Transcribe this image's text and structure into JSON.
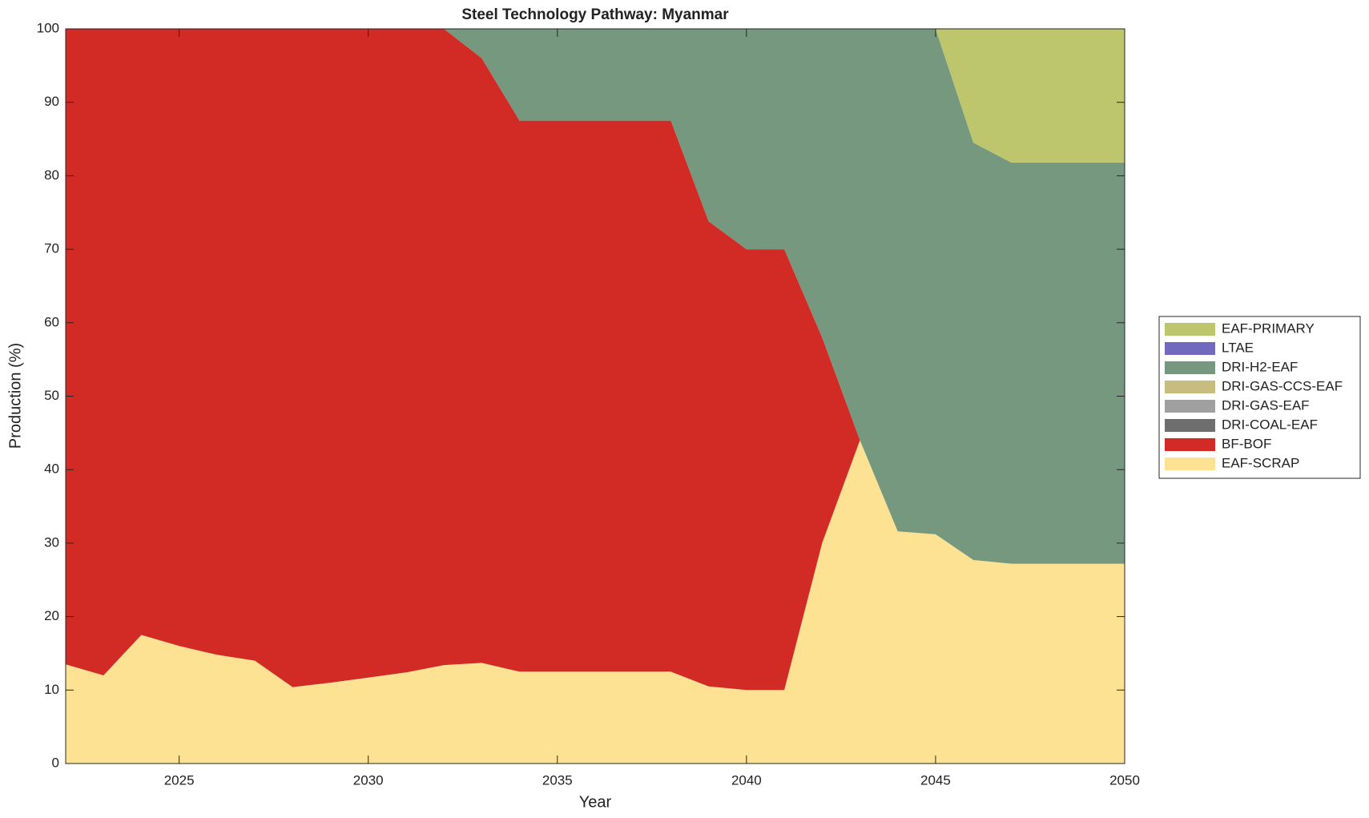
{
  "chart_data": {
    "type": "area",
    "stacked": true,
    "title": "Steel Technology Pathway: Myanmar",
    "xlabel": "Year",
    "ylabel": "Production (%)",
    "x": [
      2022,
      2023,
      2024,
      2025,
      2026,
      2027,
      2028,
      2029,
      2030,
      2031,
      2032,
      2033,
      2034,
      2035,
      2036,
      2037,
      2038,
      2039,
      2040,
      2041,
      2042,
      2043,
      2044,
      2045,
      2046,
      2047,
      2048,
      2049,
      2050
    ],
    "xlim": [
      2022,
      2050
    ],
    "xticks": [
      2025,
      2030,
      2035,
      2040,
      2045,
      2050
    ],
    "ylim": [
      0,
      100
    ],
    "yticks": [
      0,
      10,
      20,
      30,
      40,
      50,
      60,
      70,
      80,
      90,
      100
    ],
    "grid": false,
    "legend": "east-outside",
    "series": [
      {
        "name": "EAF-SCRAP",
        "color": "#fde293",
        "values": [
          13.5,
          12,
          17.5,
          16,
          14.8,
          14,
          10.4,
          11,
          11.7,
          12.4,
          13.4,
          13.7,
          12.5,
          12.5,
          12.5,
          12.5,
          12.5,
          10.5,
          10,
          10,
          30,
          44,
          31.6,
          31.2,
          27.7,
          27.2,
          27.2,
          27.2,
          27.2
        ]
      },
      {
        "name": "BF-BOF",
        "color": "#d22a24",
        "values": [
          86.5,
          88,
          82.5,
          84,
          85.2,
          86,
          89.6,
          89,
          88.3,
          87.6,
          86.6,
          82.3,
          75,
          75,
          75,
          75,
          75,
          63.3,
          60,
          60,
          28,
          0,
          0,
          0,
          0,
          0,
          0,
          0,
          0
        ]
      },
      {
        "name": "DRI-COAL-EAF",
        "color": "#6e6e6e",
        "values": [
          0,
          0,
          0,
          0,
          0,
          0,
          0,
          0,
          0,
          0,
          0,
          0,
          0,
          0,
          0,
          0,
          0,
          0,
          0,
          0,
          0,
          0,
          0,
          0,
          0,
          0,
          0,
          0,
          0
        ]
      },
      {
        "name": "DRI-GAS-EAF",
        "color": "#a0a0a0",
        "values": [
          0,
          0,
          0,
          0,
          0,
          0,
          0,
          0,
          0,
          0,
          0,
          0,
          0,
          0,
          0,
          0,
          0,
          0,
          0,
          0,
          0,
          0,
          0,
          0,
          0,
          0,
          0,
          0,
          0
        ]
      },
      {
        "name": "DRI-GAS-CCS-EAF",
        "color": "#c6bd7e",
        "values": [
          0,
          0,
          0,
          0,
          0,
          0,
          0,
          0,
          0,
          0,
          0,
          0,
          0,
          0,
          0,
          0,
          0,
          0,
          0,
          0,
          0,
          0,
          0,
          0,
          0,
          0,
          0,
          0,
          0
        ]
      },
      {
        "name": "DRI-H2-EAF",
        "color": "#76987e",
        "values": [
          0,
          0,
          0,
          0,
          0,
          0,
          0,
          0,
          0,
          0,
          0,
          4,
          12.5,
          12.5,
          12.5,
          12.5,
          12.5,
          26.2,
          30,
          30,
          42,
          56,
          68.4,
          68.8,
          56.8,
          54.6,
          54.6,
          54.6,
          54.6
        ]
      },
      {
        "name": "LTAE",
        "color": "#7268be",
        "values": [
          0,
          0,
          0,
          0,
          0,
          0,
          0,
          0,
          0,
          0,
          0,
          0,
          0,
          0,
          0,
          0,
          0,
          0,
          0,
          0,
          0,
          0,
          0,
          0,
          0,
          0,
          0,
          0,
          0
        ]
      },
      {
        "name": "EAF-PRIMARY",
        "color": "#bdc66c",
        "values": [
          0,
          0,
          0,
          0,
          0,
          0,
          0,
          0,
          0,
          0,
          0,
          0,
          0,
          0,
          0,
          0,
          0,
          0,
          0,
          0,
          0,
          0,
          0,
          0,
          15.5,
          18.2,
          18.2,
          18.2,
          18.2
        ]
      }
    ]
  }
}
